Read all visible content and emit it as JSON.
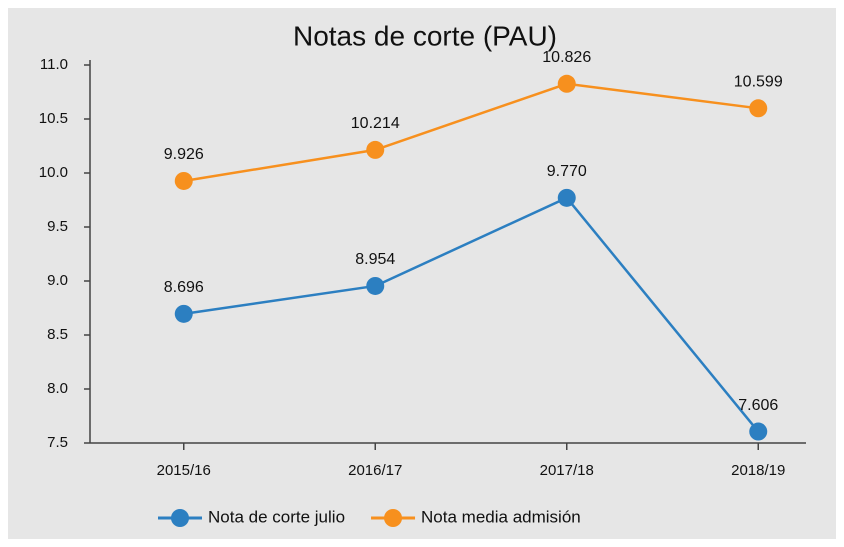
{
  "chart_data": {
    "type": "line",
    "title": "Notas de corte (PAU)",
    "categories": [
      "2015/16",
      "2016/17",
      "2017/18",
      "2018/19"
    ],
    "series": [
      {
        "name": "Nota de corte julio",
        "color": "#2c7fc1",
        "values": [
          8.696,
          8.954,
          9.77,
          7.606
        ],
        "value_labels": [
          "8.696",
          "8.954",
          "9.770",
          "7.606"
        ]
      },
      {
        "name": "Nota media admisión",
        "color": "#f7901e",
        "values": [
          9.926,
          10.214,
          10.826,
          10.599
        ]
      }
    ],
    "ylim": [
      7.5,
      11.0
    ],
    "yticks": [
      7.5,
      {
        "value": 8.0,
        "label": "8.0"
      },
      8.5,
      {
        "value": 9.0,
        "label": "9.0"
      },
      9.5,
      {
        "value": 10.0,
        "label": "10.0"
      },
      10.5,
      {
        "value": 11.0,
        "label": "11.0"
      }
    ],
    "grid": false,
    "legend": "bottom"
  }
}
